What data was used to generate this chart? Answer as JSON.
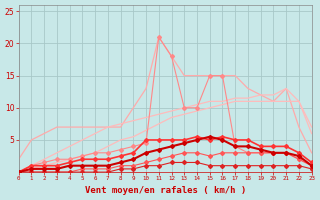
{
  "x": [
    0,
    1,
    2,
    3,
    4,
    5,
    6,
    7,
    8,
    9,
    10,
    11,
    12,
    13,
    14,
    15,
    16,
    17,
    18,
    19,
    20,
    21,
    22,
    23
  ],
  "line_spike_nomark": [
    2,
    5,
    6,
    7,
    7,
    7,
    7,
    7,
    7,
    10,
    13,
    21,
    18,
    15,
    15,
    15,
    15,
    15,
    13,
    12,
    11,
    13,
    7,
    3
  ],
  "line_env1": [
    0,
    0.5,
    1,
    1.5,
    2,
    2.5,
    3,
    4,
    5,
    5.5,
    6.5,
    7.5,
    8.5,
    9,
    9.5,
    10,
    10.5,
    11,
    11,
    11,
    11,
    11,
    11,
    7
  ],
  "line_env2": [
    0,
    1,
    2,
    3,
    4,
    5,
    6,
    7,
    7.5,
    8,
    8.5,
    9,
    9.5,
    10,
    10.5,
    11,
    11,
    11.5,
    11.5,
    12,
    12,
    13,
    11,
    6
  ],
  "line_spike_mark": [
    0,
    1,
    1.5,
    2,
    2,
    2.5,
    3,
    3,
    3.5,
    4,
    4.5,
    21,
    18,
    10,
    10,
    15,
    15,
    4,
    3,
    3,
    3,
    3,
    2,
    1
  ],
  "line_mid1": [
    0,
    1,
    1,
    1,
    1.5,
    2,
    2,
    2,
    2.5,
    3,
    5,
    5,
    5,
    5,
    5.5,
    5,
    5.5,
    5,
    5,
    4,
    4,
    4,
    3,
    1.5
  ],
  "line_mid2": [
    0,
    0.5,
    0.5,
    0.5,
    1,
    1,
    1,
    1,
    1.5,
    2,
    3,
    3.5,
    4,
    4.5,
    5,
    5.5,
    5,
    4,
    4,
    3.5,
    3,
    3,
    2.5,
    1
  ],
  "line_low1": [
    0,
    0,
    0,
    0,
    0,
    0.5,
    0.5,
    0.5,
    1,
    1,
    1.5,
    2,
    2.5,
    3,
    3,
    2.5,
    3,
    3,
    3,
    3,
    3,
    3,
    2,
    1
  ],
  "line_low2": [
    0,
    0,
    0,
    0,
    0,
    0,
    0,
    0,
    0.5,
    0.5,
    1,
    1,
    1.5,
    1.5,
    1.5,
    1,
    1,
    1,
    1,
    1,
    1,
    1,
    1,
    0.5
  ],
  "bg_color": "#c8e8e8",
  "grid_color": "#a8c8c8",
  "xlabel": "Vent moyen/en rafales ( km/h )",
  "ylim": [
    0,
    26
  ],
  "xlim": [
    0,
    23
  ],
  "yticks": [
    5,
    10,
    15,
    20,
    25
  ],
  "xticks": [
    0,
    1,
    2,
    3,
    4,
    5,
    6,
    7,
    8,
    9,
    10,
    11,
    12,
    13,
    14,
    15,
    16,
    17,
    18,
    19,
    20,
    21,
    22,
    23
  ]
}
